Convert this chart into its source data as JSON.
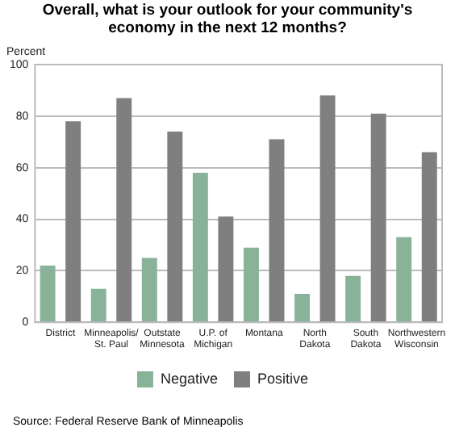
{
  "chart_data": {
    "type": "bar",
    "title": "Overall, what is your outlook for your community's\neconomy in the next 12 months?",
    "ylabel": "Percent",
    "categories": [
      "District",
      "Minneapolis/\nSt. Paul",
      "Outstate\nMinnesota",
      "U.P. of\nMichigan",
      "Montana",
      "North\nDakota",
      "South\nDakota",
      "Northwestern\nWisconsin"
    ],
    "series": [
      {
        "name": "Negative",
        "color": "#88b399",
        "values": [
          22,
          13,
          25,
          58,
          29,
          11,
          18,
          33
        ]
      },
      {
        "name": "Positive",
        "color": "#7f7f7f",
        "values": [
          78,
          87,
          74,
          41,
          71,
          88,
          81,
          66
        ]
      }
    ],
    "ylim": [
      0,
      100
    ],
    "yticks": [
      0,
      20,
      40,
      60,
      80,
      100
    ],
    "grid": "y",
    "legend": "bottom",
    "annotations": [
      "Source: Federal Reserve Bank of Minneapolis"
    ]
  }
}
